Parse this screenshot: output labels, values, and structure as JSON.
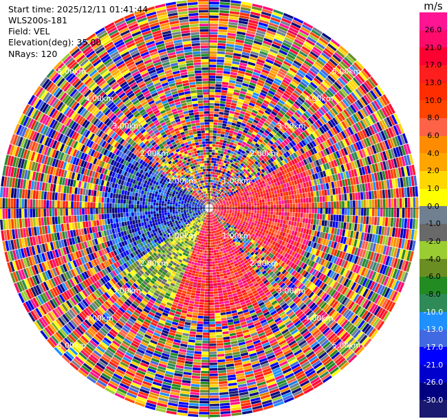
{
  "header": {
    "start_time": "Start time: 2025/12/11 01:41:44",
    "instrument": "WLS200s-181",
    "field": "Field: VEL",
    "elevation": "Elevation(deg): 35.00",
    "nrays": "NRays: 120"
  },
  "colorbar": {
    "unit": "m/s",
    "ticks": [
      "26.0",
      "21.0",
      "17.0",
      "13.0",
      "10.0",
      "8.0",
      "6.0",
      "4.0",
      "2.0",
      "1.0",
      "0.0",
      "-1.0",
      "-2.0",
      "-4.0",
      "-6.0",
      "-8.0",
      "-10.0",
      "-13.0",
      "-17.0",
      "-21.0",
      "-26.0",
      "-30.0"
    ],
    "colors": [
      "#ff1493",
      "#ff0b6b",
      "#ff0033",
      "#ff1e1e",
      "#ff2d00",
      "#ff4500",
      "#ff6347",
      "#ff8c00",
      "#ffa500",
      "#ffd700",
      "#ffff00",
      "#708090",
      "#696969",
      "#9acd32",
      "#6b8e23",
      "#228b22",
      "#2e8b57",
      "#1e90ff",
      "#4169e1",
      "#0000ff",
      "#0000cd",
      "#000080",
      "#191970"
    ]
  },
  "chart_data": {
    "type": "heatmap",
    "projection": "polar PPI",
    "field": "VEL",
    "units": "m/s",
    "n_rays": 120,
    "elevation_deg": 35.0,
    "range_rings_km": [
      1.0,
      2.0,
      3.0,
      4.0,
      5.0
    ],
    "range_ring_labels": [
      "1.00km",
      "2.00km",
      "3.00km",
      "4.00km",
      "5.00km"
    ],
    "max_range_km": 5.4,
    "colorbar_range": [
      -30.0,
      26.0
    ],
    "inner_sector_dominant_colors": {
      "east": "magenta-red (positive)",
      "west": "blue (negative)",
      "south": "red/pink (positive)",
      "southwest": "green-yellow (negative/near zero)"
    }
  }
}
